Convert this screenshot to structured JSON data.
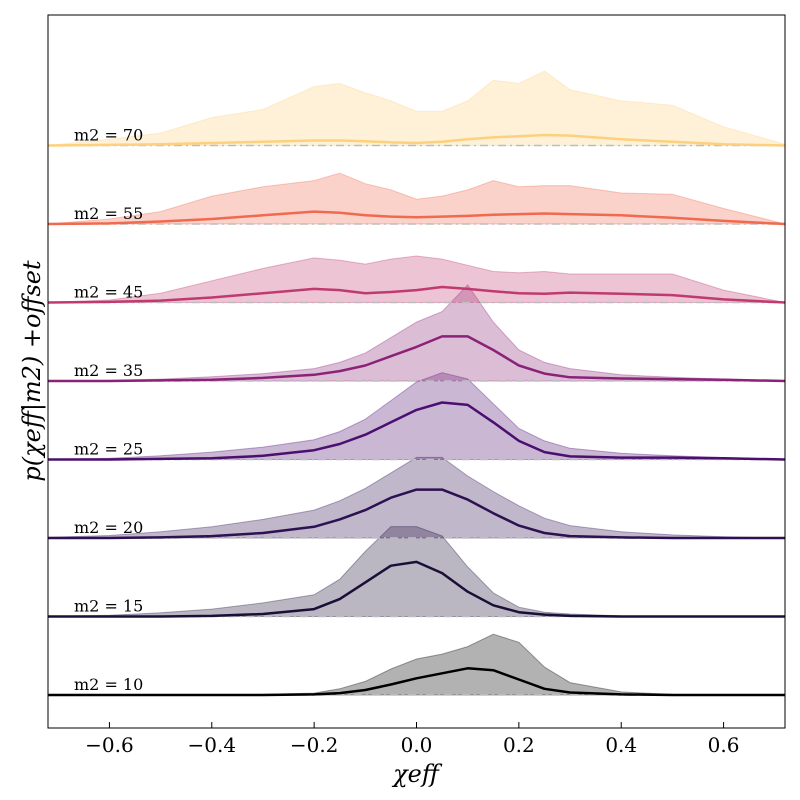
{
  "chart_data": {
    "type": "area",
    "title": "",
    "xlabel": "χeff",
    "ylabel": "p(χeff|m2) +offset",
    "xlim": [
      -0.72,
      0.72
    ],
    "xticks": [
      -0.6,
      -0.4,
      -0.2,
      0.0,
      0.2,
      0.4,
      0.6
    ],
    "xtick_labels": [
      "−0.6",
      "−0.4",
      "−0.2",
      "0.0",
      "0.2",
      "0.4",
      "0.6"
    ],
    "grid": false,
    "legend": "none",
    "offset_step": 1,
    "x": [
      -0.72,
      -0.6,
      -0.5,
      -0.4,
      -0.3,
      -0.2,
      -0.15,
      -0.1,
      -0.05,
      0.0,
      0.05,
      0.1,
      0.15,
      0.2,
      0.25,
      0.3,
      0.4,
      0.5,
      0.6,
      0.72
    ],
    "series": [
      {
        "name": "m2 = 10",
        "color": "#000000",
        "offset": 0,
        "median": [
          0,
          0,
          0,
          0,
          0,
          0.01,
          0.03,
          0.08,
          0.17,
          0.27,
          0.35,
          0.43,
          0.4,
          0.25,
          0.1,
          0.04,
          0.01,
          0,
          0,
          0
        ],
        "upper": [
          0,
          0,
          0,
          0,
          0.01,
          0.03,
          0.1,
          0.22,
          0.42,
          0.58,
          0.66,
          0.78,
          0.98,
          0.85,
          0.45,
          0.2,
          0.05,
          0.01,
          0,
          0
        ]
      },
      {
        "name": "m2 = 15",
        "color": "#1a1037",
        "offset": 1,
        "median": [
          0,
          0,
          0,
          0.01,
          0.04,
          0.12,
          0.28,
          0.55,
          0.82,
          0.88,
          0.7,
          0.4,
          0.18,
          0.07,
          0.03,
          0.01,
          0,
          0,
          0,
          0
        ],
        "upper": [
          0,
          0.02,
          0.06,
          0.12,
          0.22,
          0.35,
          0.6,
          1.05,
          1.45,
          1.45,
          1.3,
          0.8,
          0.38,
          0.15,
          0.07,
          0.04,
          0.01,
          0,
          0,
          0
        ]
      },
      {
        "name": "m2 = 20",
        "color": "#2d1152",
        "offset": 2,
        "median": [
          0,
          0,
          0.01,
          0.03,
          0.08,
          0.18,
          0.3,
          0.45,
          0.65,
          0.78,
          0.78,
          0.62,
          0.4,
          0.2,
          0.08,
          0.03,
          0.01,
          0,
          0,
          0
        ],
        "upper": [
          0.01,
          0.04,
          0.1,
          0.18,
          0.3,
          0.45,
          0.6,
          0.8,
          1.05,
          1.3,
          1.3,
          1.0,
          0.75,
          0.52,
          0.32,
          0.2,
          0.1,
          0.05,
          0.02,
          0
        ]
      },
      {
        "name": "m2 = 25",
        "color": "#4b0f6f",
        "offset": 3,
        "median": [
          0,
          0,
          0.01,
          0.02,
          0.06,
          0.15,
          0.25,
          0.4,
          0.6,
          0.8,
          0.92,
          0.88,
          0.6,
          0.3,
          0.12,
          0.05,
          0.03,
          0.03,
          0.02,
          0
        ],
        "upper": [
          0,
          0.02,
          0.06,
          0.12,
          0.2,
          0.32,
          0.45,
          0.65,
          0.95,
          1.25,
          1.4,
          1.3,
          0.9,
          0.5,
          0.3,
          0.18,
          0.1,
          0.06,
          0.03,
          0
        ]
      },
      {
        "name": "m2 = 35",
        "color": "#8a2378",
        "offset": 4,
        "median": [
          0,
          0,
          0.01,
          0.02,
          0.05,
          0.1,
          0.16,
          0.25,
          0.4,
          0.55,
          0.72,
          0.72,
          0.5,
          0.25,
          0.12,
          0.06,
          0.04,
          0.03,
          0.02,
          0
        ],
        "upper": [
          0,
          0.01,
          0.03,
          0.07,
          0.12,
          0.2,
          0.3,
          0.45,
          0.7,
          0.95,
          1.12,
          1.55,
          0.95,
          0.5,
          0.3,
          0.2,
          0.1,
          0.06,
          0.03,
          0
        ]
      },
      {
        "name": "m2 = 45",
        "color": "#c03a6f",
        "offset": 5,
        "median": [
          0,
          0.01,
          0.03,
          0.08,
          0.15,
          0.22,
          0.2,
          0.15,
          0.17,
          0.2,
          0.25,
          0.22,
          0.18,
          0.15,
          0.14,
          0.16,
          0.14,
          0.12,
          0.05,
          0
        ],
        "upper": [
          0,
          0.04,
          0.15,
          0.35,
          0.55,
          0.72,
          0.68,
          0.62,
          0.7,
          0.75,
          0.7,
          0.6,
          0.5,
          0.48,
          0.5,
          0.46,
          0.46,
          0.46,
          0.2,
          0
        ]
      },
      {
        "name": "m2 = 55",
        "color": "#f06a4f",
        "offset": 6,
        "median": [
          0,
          0.01,
          0.04,
          0.08,
          0.14,
          0.2,
          0.18,
          0.14,
          0.12,
          0.11,
          0.12,
          0.13,
          0.15,
          0.16,
          0.17,
          0.16,
          0.14,
          0.1,
          0.05,
          0
        ],
        "upper": [
          0,
          0.08,
          0.2,
          0.45,
          0.6,
          0.7,
          0.82,
          0.65,
          0.55,
          0.4,
          0.45,
          0.55,
          0.7,
          0.6,
          0.62,
          0.62,
          0.5,
          0.48,
          0.25,
          0
        ]
      },
      {
        "name": "m2 = 70",
        "color": "#fdd07e",
        "offset": 7,
        "median": [
          0,
          0.01,
          0.02,
          0.04,
          0.06,
          0.08,
          0.08,
          0.07,
          0.05,
          0.04,
          0.06,
          0.1,
          0.13,
          0.15,
          0.17,
          0.16,
          0.1,
          0.06,
          0.02,
          0
        ],
        "upper": [
          0,
          0.1,
          0.2,
          0.45,
          0.58,
          0.95,
          1.0,
          0.85,
          0.72,
          0.55,
          0.55,
          0.72,
          1.05,
          1.0,
          1.2,
          0.9,
          0.72,
          0.65,
          0.3,
          0.02
        ]
      }
    ]
  }
}
